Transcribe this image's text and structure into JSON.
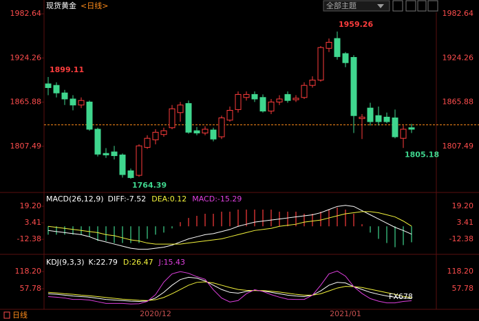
{
  "header": {
    "title": "现货黄金",
    "period": "<日线>"
  },
  "toolbar": {
    "theme": "全部主题"
  },
  "footer": {
    "period": "日线"
  },
  "watermark": "FX678",
  "chart_data": [
    {
      "type": "candlestick",
      "categories": [
        null,
        null,
        null,
        null,
        null,
        null,
        null,
        null,
        null,
        null,
        null,
        null,
        null,
        "2020/12",
        null,
        null,
        null,
        null,
        null,
        null,
        null,
        null,
        null,
        null,
        null,
        null,
        null,
        null,
        null,
        null,
        null,
        null,
        null,
        null,
        null,
        null,
        "2021/01",
        null,
        null,
        null,
        null,
        null,
        null,
        null,
        null
      ],
      "open": [
        1890,
        1888,
        1878,
        1870,
        1862,
        1866,
        1830,
        1798,
        1800,
        1796,
        1775,
        1769,
        1806,
        1816,
        1823,
        1832,
        1852,
        1864,
        1828,
        1825,
        1829,
        1820,
        1842,
        1856,
        1872,
        1876,
        1872,
        1854,
        1866,
        1876,
        1869,
        1872,
        1888,
        1895,
        1937,
        1950,
        1930,
        1925,
        1844,
        1858,
        1848,
        1846,
        1845,
        1818,
        1832
      ],
      "high": [
        1899.11,
        1892,
        1882,
        1875,
        1872,
        1868,
        1832,
        1805,
        1808,
        1798,
        1778,
        1810,
        1822,
        1830,
        1832,
        1862,
        1866,
        1868,
        1833,
        1834,
        1832,
        1848,
        1860,
        1880,
        1880,
        1880,
        1876,
        1870,
        1875,
        1880,
        1875,
        1892,
        1900,
        1940,
        1950,
        1959.26,
        1932,
        1928,
        1850,
        1865,
        1860,
        1852,
        1856,
        1835,
        1837
      ],
      "low": [
        1875,
        1872,
        1862,
        1855,
        1858,
        1828,
        1794,
        1792,
        1790,
        1766,
        1764.39,
        1767,
        1804,
        1810,
        1820,
        1830,
        1840,
        1824,
        1822,
        1822,
        1814,
        1817,
        1840,
        1852,
        1868,
        1866,
        1852,
        1850,
        1862,
        1865,
        1866,
        1870,
        1885,
        1893,
        1932,
        1922,
        1912,
        1825,
        1817,
        1835,
        1835,
        1838,
        1818,
        1805.18,
        1825
      ],
      "close": [
        1885,
        1878,
        1870,
        1862,
        1868,
        1830,
        1797,
        1796,
        1795,
        1770,
        1766,
        1808,
        1818,
        1826,
        1828,
        1857,
        1862,
        1826,
        1825,
        1830,
        1817,
        1845,
        1855,
        1876,
        1876,
        1870,
        1854,
        1866,
        1870,
        1868,
        1871,
        1888,
        1895,
        1938,
        1945,
        1926,
        1918,
        1848,
        1846,
        1840,
        1840,
        1840,
        1820,
        1830,
        1830
      ],
      "up_color": "#ff3d3d",
      "down_color": "#3fd68e",
      "last_price": 1835.8,
      "ylim": [
        1750,
        1990
      ],
      "yticks": [
        1807.49,
        1865.88,
        1924.26,
        1982.64
      ]
    },
    {
      "type": "macd",
      "title": "MACD(26,12,9)",
      "series": [
        {
          "name": "DIFF:",
          "color": "#ffffff",
          "values": [
            -4,
            -5,
            -6,
            -7,
            -8,
            -10,
            -13,
            -15,
            -17,
            -19,
            -21,
            -22,
            -22,
            -21,
            -20,
            -18,
            -15,
            -12,
            -10,
            -8,
            -7,
            -5,
            -3,
            0,
            2,
            4,
            5,
            6,
            7,
            8,
            9,
            10,
            11,
            13,
            16,
            19,
            20,
            19,
            15,
            11,
            7,
            3,
            -1,
            -4,
            -7.52
          ]
        },
        {
          "name": "DEA:",
          "color": "#f5f53c",
          "values": [
            0,
            -1,
            -2,
            -3,
            -4,
            -5,
            -6,
            -8,
            -9,
            -11,
            -13,
            -14,
            -16,
            -17,
            -17,
            -17,
            -17,
            -16,
            -15,
            -14,
            -13,
            -12,
            -10,
            -8,
            -6,
            -4,
            -3,
            -2,
            0,
            1,
            2,
            4,
            5,
            6,
            8,
            10,
            12,
            13,
            14,
            14,
            13,
            11,
            9,
            5,
            0.12
          ]
        },
        {
          "name": "MACD:",
          "color": "#e040e0",
          "values": [
            -8,
            -8,
            -8,
            -8,
            -8,
            -10,
            -14,
            -14,
            -16,
            -16,
            -16,
            -16,
            -12,
            -8,
            -6,
            -2,
            4,
            8,
            10,
            12,
            12,
            14,
            14,
            16,
            16,
            16,
            16,
            16,
            14,
            14,
            14,
            12,
            12,
            14,
            16,
            18,
            16,
            12,
            2,
            -6,
            -12,
            -16,
            -20,
            -18,
            -15.29
          ]
        }
      ],
      "up_color": "#ff3d3d",
      "down_color": "#3fd68e",
      "ylim": [
        -25.5,
        30.4
      ],
      "yticks": [
        {
          "value": 19.2,
          "label": "19.20"
        },
        3.41,
        -12.38
      ]
    },
    {
      "type": "line",
      "title": "KDJ(9,3,3)",
      "series": [
        {
          "name": "K:",
          "color": "#ffffff",
          "values": [
            40,
            38,
            35,
            32,
            30,
            28,
            24,
            20,
            18,
            16,
            14,
            13,
            15,
            25,
            45,
            70,
            90,
            98,
            95,
            85,
            70,
            55,
            45,
            42,
            48,
            52,
            50,
            45,
            40,
            35,
            32,
            30,
            35,
            50,
            70,
            80,
            78,
            65,
            55,
            45,
            38,
            32,
            28,
            25,
            22.79
          ]
        },
        {
          "name": "D:",
          "color": "#f5f53c",
          "values": [
            45,
            43,
            40,
            38,
            35,
            33,
            30,
            27,
            24,
            21,
            19,
            17,
            16,
            19,
            27,
            40,
            55,
            70,
            80,
            82,
            78,
            70,
            62,
            55,
            52,
            51,
            51,
            49,
            46,
            42,
            38,
            35,
            35,
            40,
            50,
            60,
            66,
            65,
            62,
            56,
            50,
            44,
            38,
            31,
            26.47
          ]
        },
        {
          "name": "J:",
          "color": "#e040e0",
          "values": [
            30,
            28,
            25,
            20,
            20,
            18,
            12,
            6,
            6,
            6,
            4,
            5,
            13,
            37,
            81,
            110,
            118,
            112,
            100,
            91,
            54,
            25,
            11,
            16,
            40,
            54,
            48,
            37,
            28,
            21,
            20,
            20,
            35,
            70,
            110,
            120,
            102,
            65,
            41,
            23,
            14,
            8,
            8,
            13,
            15.43
          ]
        }
      ],
      "ylim": [
        -9.9,
        171.4
      ],
      "yticks": [
        {
          "value": 118.2,
          "label": "118.20"
        },
        57.78
      ]
    }
  ]
}
